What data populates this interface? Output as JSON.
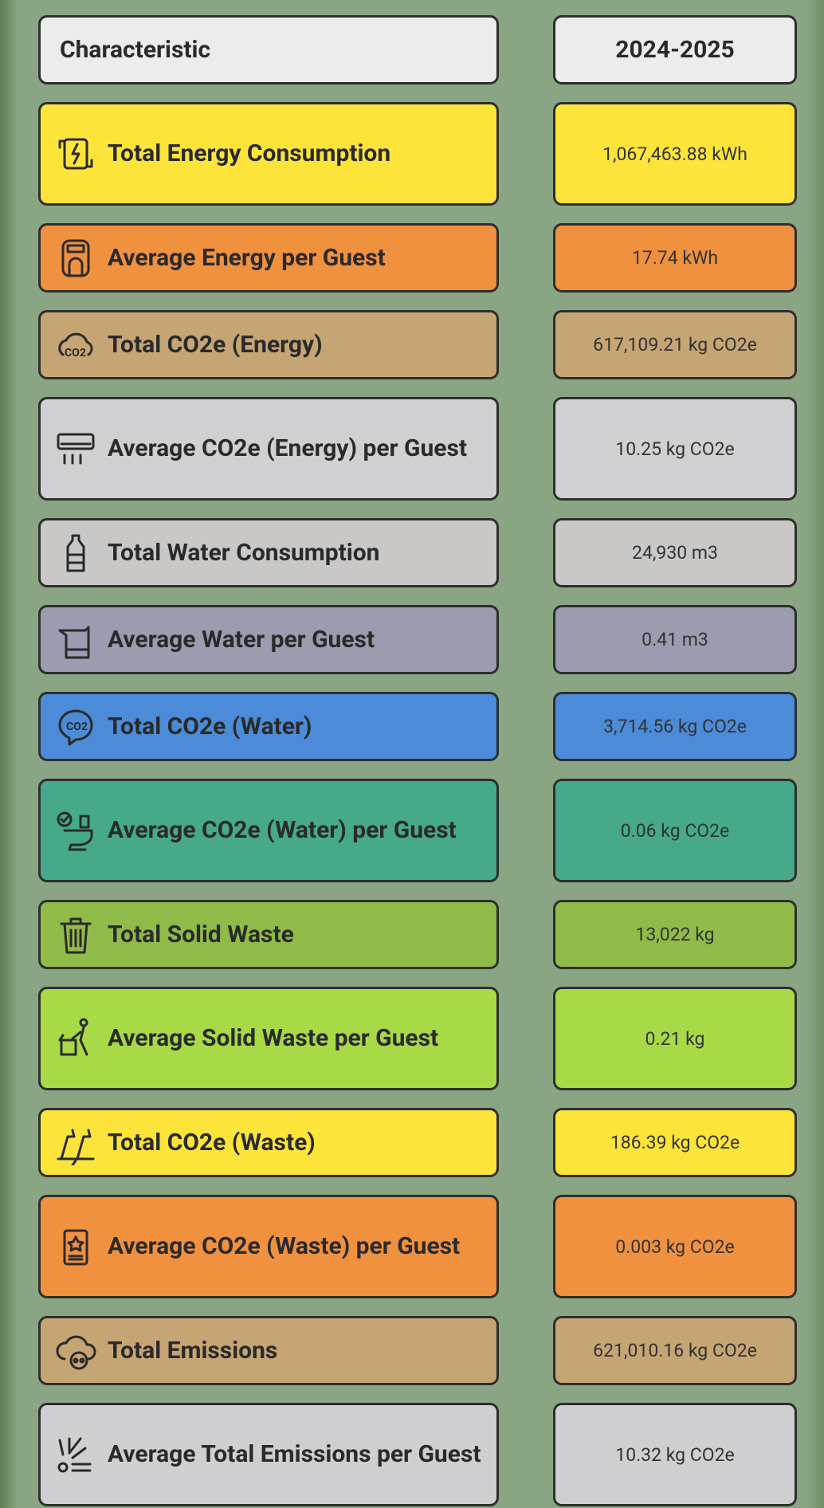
{
  "header": {
    "columns": [
      "Characteristic",
      "2024-2025"
    ]
  },
  "rows": [
    {
      "label": "Total Energy Consumption",
      "value": "1,067,463.88 kWh"
    },
    {
      "label": "Average Energy per Guest",
      "value": "17.74 kWh"
    },
    {
      "label": "Total CO2e (Energy)",
      "value": "617,109.21 kg CO2e"
    },
    {
      "label": "Average CO2e (Energy) per Guest",
      "value": "10.25 kg CO2e"
    },
    {
      "label": "Total Water Consumption",
      "value": "24,930 m3"
    },
    {
      "label": "Average Water per Guest",
      "value": "0.41 m3"
    },
    {
      "label": "Total CO2e (Water)",
      "value": "3,714.56 kg CO2e"
    },
    {
      "label": "Average CO2e (Water) per Guest",
      "value": "0.06 kg CO2e"
    },
    {
      "label": "Total Solid Waste",
      "value": "13,022 kg"
    },
    {
      "label": "Average Solid Waste per Guest",
      "value": "0.21 kg"
    },
    {
      "label": "Total CO2e (Waste)",
      "value": "186.39 kg CO2e"
    },
    {
      "label": "Average CO2e (Waste) per Guest",
      "value": "0.003 kg CO2e"
    },
    {
      "label": "Total Emissions",
      "value": "621,010.16 kg CO2e"
    },
    {
      "label": "Average Total Emissions per Guest",
      "value": "10.32 kg CO2e"
    }
  ]
}
